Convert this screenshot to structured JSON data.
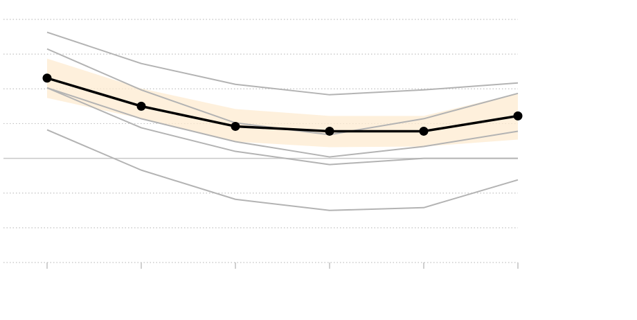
{
  "chart_data": {
    "type": "line",
    "x": [
      0,
      1,
      2,
      3,
      4,
      5
    ],
    "xlim": [
      0,
      5
    ],
    "xticks": [
      0,
      1,
      2,
      3,
      4,
      5
    ],
    "ylim": [
      -3,
      4
    ],
    "yticks": [
      -3,
      -2,
      -1,
      0,
      1,
      2,
      3,
      4
    ],
    "grid": true,
    "zero_line": true,
    "band": {
      "color": "#fdebd0",
      "upper": [
        2.87,
        2.01,
        1.42,
        1.22,
        1.22,
        1.87
      ],
      "lower": [
        1.74,
        1.14,
        0.48,
        0.32,
        0.34,
        0.54
      ]
    },
    "series": [
      {
        "color": "#b3b3b3",
        "values": [
          3.63,
          2.73,
          2.13,
          1.83,
          1.97,
          2.17
        ]
      },
      {
        "color": "#b3b3b3",
        "values": [
          3.15,
          1.97,
          1.02,
          0.68,
          1.14,
          1.87
        ]
      },
      {
        "color": "#b3b3b3",
        "values": [
          2.03,
          1.14,
          0.48,
          0.04,
          0.34,
          0.78
        ]
      },
      {
        "color": "#b3b3b3",
        "values": [
          2.03,
          0.88,
          0.2,
          -0.18,
          0,
          0
        ]
      },
      {
        "color": "#b3b3b3",
        "values": [
          0.82,
          -0.34,
          -1.18,
          -1.5,
          -1.42,
          -0.62
        ]
      },
      {
        "color": "#000000",
        "values": [
          2.31,
          1.5,
          0.92,
          0.78,
          0.78,
          1.22
        ],
        "markers": true
      }
    ]
  }
}
